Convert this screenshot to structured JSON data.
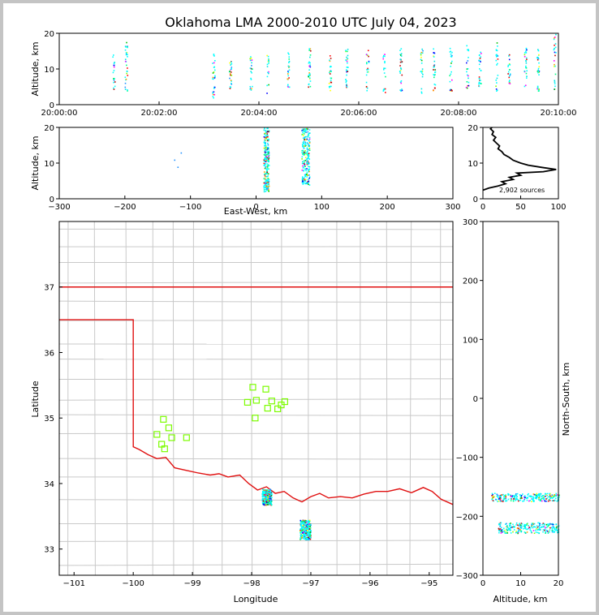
{
  "chart_data": {
    "type": "scatter",
    "title": "Oklahoma LMA 2000-2010 UTC July 04, 2023",
    "panels": {
      "time_height": {
        "ylabel": "Altitude, km",
        "ylim": [
          0,
          20
        ],
        "yticks": [
          "0",
          "10",
          "20"
        ],
        "xlim_seconds": [
          0,
          600
        ],
        "xticks": [
          "20:00:00",
          "20:02:00",
          "20:04:00",
          "20:06:00",
          "20:08:00",
          "20:10:00"
        ],
        "columns": [
          {
            "t_sec": 65,
            "zmin": 3,
            "zmax": 15
          },
          {
            "t_sec": 80,
            "zmin": 4,
            "zmax": 18
          },
          {
            "t_sec": 185,
            "zmin": 2,
            "zmax": 15
          },
          {
            "t_sec": 205,
            "zmin": 4,
            "zmax": 13
          },
          {
            "t_sec": 230,
            "zmin": 4,
            "zmax": 14
          },
          {
            "t_sec": 250,
            "zmin": 3,
            "zmax": 14
          },
          {
            "t_sec": 275,
            "zmin": 4,
            "zmax": 15
          },
          {
            "t_sec": 300,
            "zmin": 5,
            "zmax": 16
          },
          {
            "t_sec": 325,
            "zmin": 4,
            "zmax": 14
          },
          {
            "t_sec": 345,
            "zmin": 5,
            "zmax": 16
          },
          {
            "t_sec": 370,
            "zmin": 4,
            "zmax": 16
          },
          {
            "t_sec": 390,
            "zmin": 3,
            "zmax": 15
          },
          {
            "t_sec": 410,
            "zmin": 4,
            "zmax": 16
          },
          {
            "t_sec": 435,
            "zmin": 3,
            "zmax": 16
          },
          {
            "t_sec": 450,
            "zmin": 4,
            "zmax": 16
          },
          {
            "t_sec": 470,
            "zmin": 4,
            "zmax": 16
          },
          {
            "t_sec": 490,
            "zmin": 4,
            "zmax": 17
          },
          {
            "t_sec": 505,
            "zmin": 4,
            "zmax": 16
          },
          {
            "t_sec": 525,
            "zmin": 4,
            "zmax": 18
          },
          {
            "t_sec": 540,
            "zmin": 4,
            "zmax": 16
          },
          {
            "t_sec": 560,
            "zmin": 4,
            "zmax": 16
          },
          {
            "t_sec": 575,
            "zmin": 4,
            "zmax": 16
          },
          {
            "t_sec": 595,
            "zmin": 4,
            "zmax": 20
          }
        ]
      },
      "ew_height": {
        "xlabel": "East-West, km",
        "ylabel": "Altitude, km",
        "xlim": [
          -300,
          300
        ],
        "ylim": [
          0,
          20
        ],
        "xticks": [
          "−300",
          "−200",
          "−100",
          "0",
          "100",
          "200",
          "300"
        ],
        "yticks": [
          "0",
          "10",
          "20"
        ],
        "clusters": [
          {
            "x": 15,
            "width": 8,
            "zmin": 2,
            "zmax": 20
          },
          {
            "x": 75,
            "width": 12,
            "zmin": 4,
            "zmax": 20
          }
        ],
        "isolated": [
          [
            -125,
            11
          ],
          [
            -120,
            9
          ],
          [
            -115,
            13
          ]
        ]
      },
      "height_histogram": {
        "xlim": [
          0,
          100
        ],
        "ylim": [
          0,
          20
        ],
        "xticks": [
          "0",
          "50",
          "100"
        ],
        "yticks": [
          "0",
          "10",
          "20"
        ],
        "annotation": "2,902 sources",
        "profile": [
          [
            0,
            2.4
          ],
          [
            8,
            3
          ],
          [
            20,
            3.6
          ],
          [
            30,
            4.2
          ],
          [
            25,
            4.8
          ],
          [
            40,
            5.4
          ],
          [
            35,
            6
          ],
          [
            50,
            6.6
          ],
          [
            45,
            7.2
          ],
          [
            80,
            7.6
          ],
          [
            97,
            8.2
          ],
          [
            78,
            8.8
          ],
          [
            60,
            9.4
          ],
          [
            50,
            10
          ],
          [
            40,
            10.8
          ],
          [
            35,
            11.6
          ],
          [
            28,
            12.4
          ],
          [
            25,
            13.2
          ],
          [
            20,
            14
          ],
          [
            22,
            14.8
          ],
          [
            18,
            15.6
          ],
          [
            14,
            16.4
          ],
          [
            17,
            17.2
          ],
          [
            12,
            18
          ],
          [
            14,
            18.8
          ],
          [
            10,
            19.6
          ],
          [
            12,
            20
          ]
        ]
      },
      "plan_view": {
        "xlabel": "Longitude",
        "ylabel": "Latitude",
        "xlim": [
          -101.25,
          -94.6
        ],
        "ylim": [
          32.6,
          38.0
        ],
        "xticks": [
          "−101",
          "−100",
          "−99",
          "−98",
          "−97",
          "−96",
          "−95"
        ],
        "yticks": [
          "33",
          "34",
          "35",
          "36",
          "37"
        ],
        "stations": [
          [
            -99.6,
            34.75
          ],
          [
            -99.49,
            34.98
          ],
          [
            -99.4,
            34.85
          ],
          [
            -99.35,
            34.7
          ],
          [
            -99.52,
            34.6
          ],
          [
            -99.47,
            34.53
          ],
          [
            -99.1,
            34.7
          ],
          [
            -98.07,
            35.24
          ],
          [
            -97.98,
            35.47
          ],
          [
            -97.92,
            35.27
          ],
          [
            -97.94,
            35.0
          ],
          [
            -97.76,
            35.44
          ],
          [
            -97.73,
            35.15
          ],
          [
            -97.66,
            35.26
          ],
          [
            -97.56,
            35.14
          ],
          [
            -97.44,
            35.25
          ],
          [
            -97.5,
            35.2
          ]
        ],
        "source_clusters": [
          {
            "lon": -97.75,
            "lat": 33.8,
            "dlon": 0.08,
            "dlat": 0.12
          },
          {
            "lon": -97.1,
            "lat": 33.3,
            "dlon": 0.09,
            "dlat": 0.15
          }
        ]
      },
      "height_ns": {
        "xlabel": "Altitude, km",
        "ylabel": "North-South, km",
        "xlim": [
          0,
          20
        ],
        "ylim": [
          -300,
          300
        ],
        "xticks": [
          "0",
          "10",
          "20"
        ],
        "yticks": [
          "−300",
          "−200",
          "−100",
          "0",
          "100",
          "200",
          "300"
        ],
        "clusters": [
          {
            "ns": -167,
            "dns": 7,
            "zmin": 2,
            "zmax": 20
          },
          {
            "ns": -219,
            "dns": 9,
            "zmin": 4,
            "zmax": 20
          }
        ]
      }
    }
  }
}
